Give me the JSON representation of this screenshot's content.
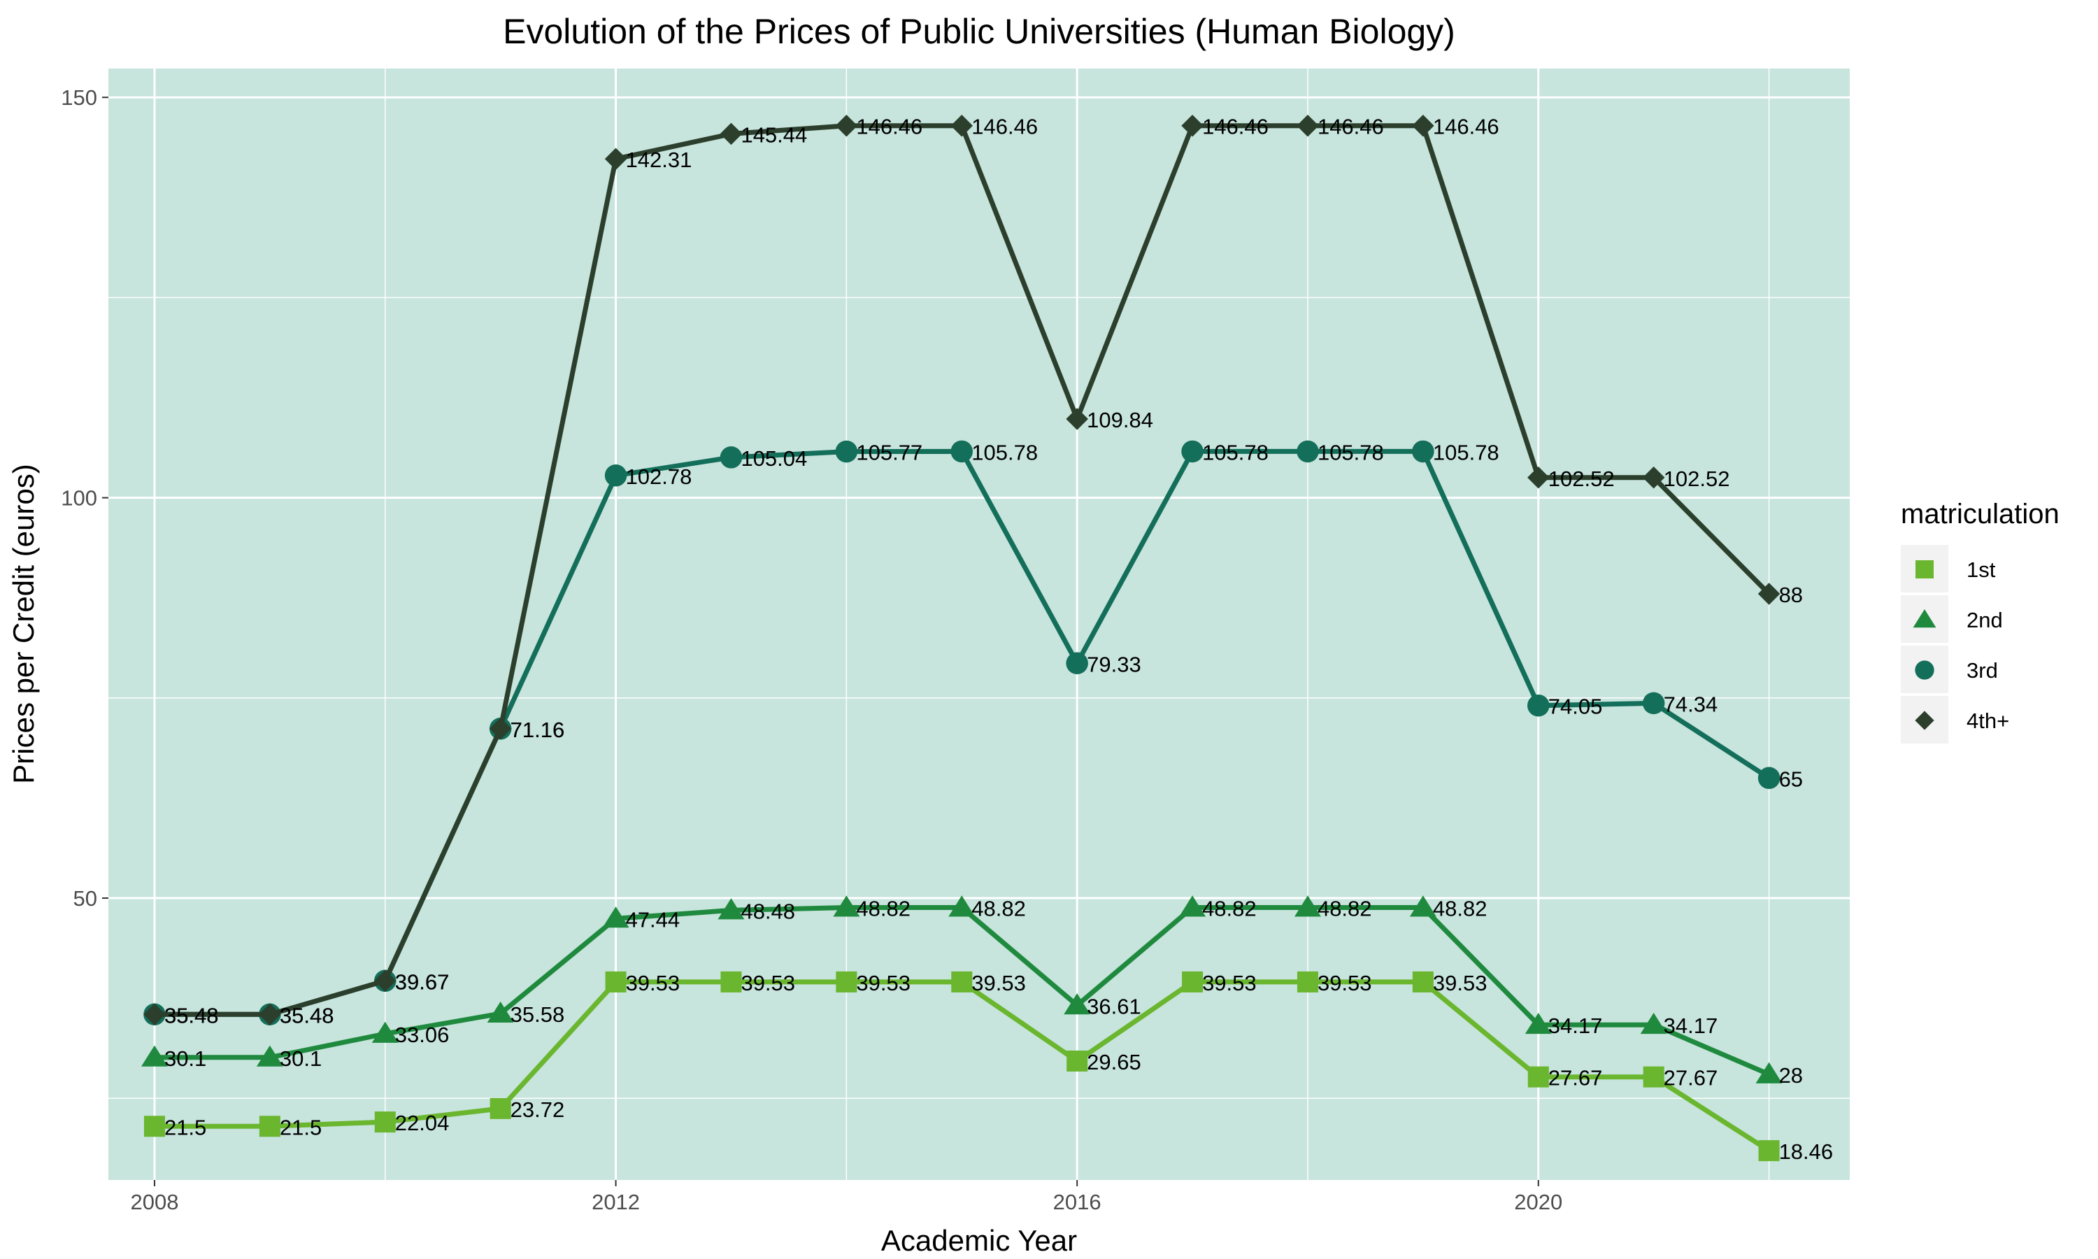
{
  "chart_data": {
    "type": "line",
    "title": "Evolution of the Prices of Public Universities (Human Biology)",
    "xlabel": "Academic Year",
    "ylabel": "Prices per Credit (euros)",
    "x": [
      2008,
      2009,
      2010,
      2011,
      2012,
      2013,
      2014,
      2015,
      2016,
      2017,
      2018,
      2019,
      2020,
      2021,
      2022
    ],
    "xlim": [
      2007.6,
      2022.7
    ],
    "ylim": [
      14.8,
      153.6
    ],
    "xticks": [
      2008,
      2012,
      2016,
      2020
    ],
    "yticks": [
      50,
      100,
      150
    ],
    "grid": true,
    "panel_background": "#c7e4dd",
    "legend": {
      "title": "matriculation",
      "position": "right"
    },
    "series": [
      {
        "name": "1st",
        "color": "#6ab62e",
        "marker": "square",
        "values": [
          21.5,
          21.5,
          22.04,
          23.72,
          39.53,
          39.53,
          39.53,
          39.53,
          29.65,
          39.53,
          39.53,
          39.53,
          27.67,
          27.67,
          18.46
        ],
        "labels": [
          "21.5",
          "21.5",
          "22.04",
          "23.72",
          "39.53",
          "39.53",
          "39.53",
          "39.53",
          "29.65",
          "39.53",
          "39.53",
          "39.53",
          "27.67",
          "27.67",
          "18.46"
        ]
      },
      {
        "name": "2nd",
        "color": "#1f8a3e",
        "marker": "triangle",
        "values": [
          30.1,
          30.1,
          33.06,
          35.58,
          47.44,
          48.48,
          48.82,
          48.82,
          36.61,
          48.82,
          48.82,
          48.82,
          34.17,
          34.17,
          28
        ],
        "labels": [
          "30.1",
          "30.1",
          "33.06",
          "35.58",
          "47.44",
          "48.48",
          "48.82",
          "48.82",
          "36.61",
          "48.82",
          "48.82",
          "48.82",
          "34.17",
          "34.17",
          "28"
        ]
      },
      {
        "name": "3rd",
        "color": "#136e5a",
        "marker": "circle",
        "values": [
          35.48,
          35.48,
          39.67,
          71.16,
          102.78,
          105.04,
          105.77,
          105.78,
          79.33,
          105.78,
          105.78,
          105.78,
          74.05,
          74.34,
          65
        ],
        "labels": [
          "35.48",
          "35.48",
          "39.67",
          "71.16",
          "102.78",
          "105.04",
          "105.77",
          "105.78",
          "79.33",
          "105.78",
          "105.78",
          "105.78",
          "74.05",
          "74.34",
          "65"
        ]
      },
      {
        "name": "4th+",
        "color": "#2b3f2c",
        "marker": "diamond",
        "values": [
          35.48,
          35.48,
          39.67,
          71.16,
          142.31,
          145.44,
          146.46,
          146.46,
          109.84,
          146.46,
          146.46,
          146.46,
          102.52,
          102.52,
          88
        ],
        "labels": [
          "35.48",
          "35.48",
          "39.67",
          "71.16",
          "142.31",
          "145.44",
          "146.46",
          "146.46",
          "109.84",
          "146.46",
          "146.46",
          "146.46",
          "102.52",
          "102.52",
          "88"
        ]
      }
    ]
  }
}
